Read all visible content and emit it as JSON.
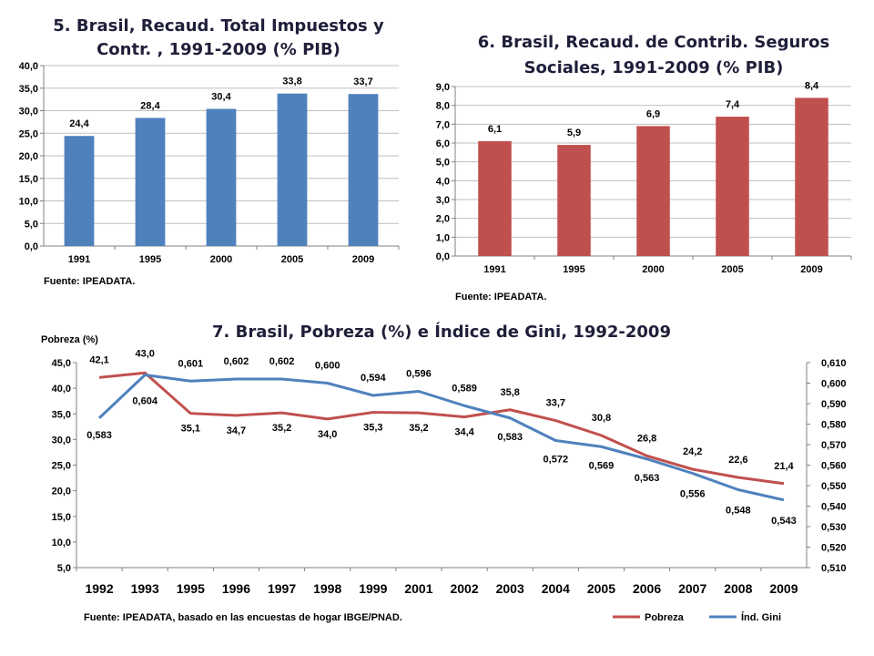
{
  "chart_data": [
    {
      "type": "bar",
      "title_lines": [
        "5. Brasil, Recaud. Total Impuestos y",
        "Contr. , 1991-2009  (% PIB)"
      ],
      "categories": [
        "1991",
        "1995",
        "2000",
        "2005",
        "2009"
      ],
      "values": [
        24.4,
        28.4,
        30.4,
        33.8,
        33.7
      ],
      "value_labels": [
        "24,4",
        "28,4",
        "30,4",
        "33,8",
        "33,7"
      ],
      "ylim": [
        0,
        40
      ],
      "yticks": [
        "0,0",
        "5,0",
        "10,0",
        "15,0",
        "20,0",
        "25,0",
        "30,0",
        "35,0",
        "40,0"
      ],
      "color": "#4f81bd",
      "grid": true,
      "source": "Fuente: IPEADATA."
    },
    {
      "type": "bar",
      "title_lines": [
        "6. Brasil, Recaud. de Contrib. Seguros",
        "Sociales, 1991-2009 (% PIB)"
      ],
      "categories": [
        "1991",
        "1995",
        "2000",
        "2005",
        "2009"
      ],
      "values": [
        6.1,
        5.9,
        6.9,
        7.4,
        8.4
      ],
      "value_labels": [
        "6,1",
        "5,9",
        "6,9",
        "7,4",
        "8,4"
      ],
      "ylim": [
        0,
        9
      ],
      "yticks": [
        "0,0",
        "1,0",
        "2,0",
        "3,0",
        "4,0",
        "5,0",
        "6,0",
        "7,0",
        "8,0",
        "9,0"
      ],
      "color": "#c0504d",
      "grid": true,
      "source": "Fuente: IPEADATA."
    },
    {
      "type": "line",
      "title": "7. Brasil, Pobreza (%) e Índice de Gini, 1992-2009",
      "ylabel_left": "Pobreza (%)",
      "categories": [
        "1992",
        "1993",
        "1995",
        "1996",
        "1997",
        "1998",
        "1999",
        "2001",
        "2002",
        "2003",
        "2004",
        "2005",
        "2006",
        "2007",
        "2008",
        "2009"
      ],
      "ylim_left": [
        5,
        45
      ],
      "yticks_left": [
        "5,0",
        "10,0",
        "15,0",
        "20,0",
        "25,0",
        "30,0",
        "35,0",
        "40,0",
        "45,0"
      ],
      "ylim_right": [
        0.51,
        0.61
      ],
      "yticks_right": [
        "0,510",
        "0,520",
        "0,530",
        "0,540",
        "0,550",
        "0,560",
        "0,570",
        "0,580",
        "0,590",
        "0,600",
        "0,610"
      ],
      "series": [
        {
          "name": "Pobreza",
          "axis": "left",
          "color": "#c0504d",
          "values": [
            42.1,
            43.0,
            35.1,
            34.7,
            35.2,
            34.0,
            35.3,
            35.2,
            34.4,
            35.8,
            33.7,
            30.8,
            26.8,
            24.2,
            22.6,
            21.4
          ],
          "labels": [
            "42,1",
            "43,0",
            "35,1",
            "34,7",
            "35,2",
            "34,0",
            "35,3",
            "35,2",
            "34,4",
            "35,8",
            "33,7",
            "30,8",
            "26,8",
            "24,2",
            "22,6",
            "21,4"
          ]
        },
        {
          "name": "Índ. Gini",
          "axis": "right",
          "color": "#4f81bd",
          "values": [
            0.583,
            0.604,
            0.601,
            0.602,
            0.602,
            0.6,
            0.594,
            0.596,
            0.589,
            0.583,
            0.572,
            0.569,
            0.563,
            0.556,
            0.548,
            0.543
          ],
          "labels": [
            "0,583",
            "0,604",
            "0,601",
            "0,602",
            "0,602",
            "0,600",
            "0,594",
            "0,596",
            "0,589",
            "0,583",
            "0,572",
            "0,569",
            "0,563",
            "0,556",
            "0,548",
            "0,543"
          ]
        }
      ],
      "legend_position": "bottom-right",
      "source": "Fuente: IPEADATA, basado en las encuestas de hogar IBGE/PNAD."
    }
  ]
}
